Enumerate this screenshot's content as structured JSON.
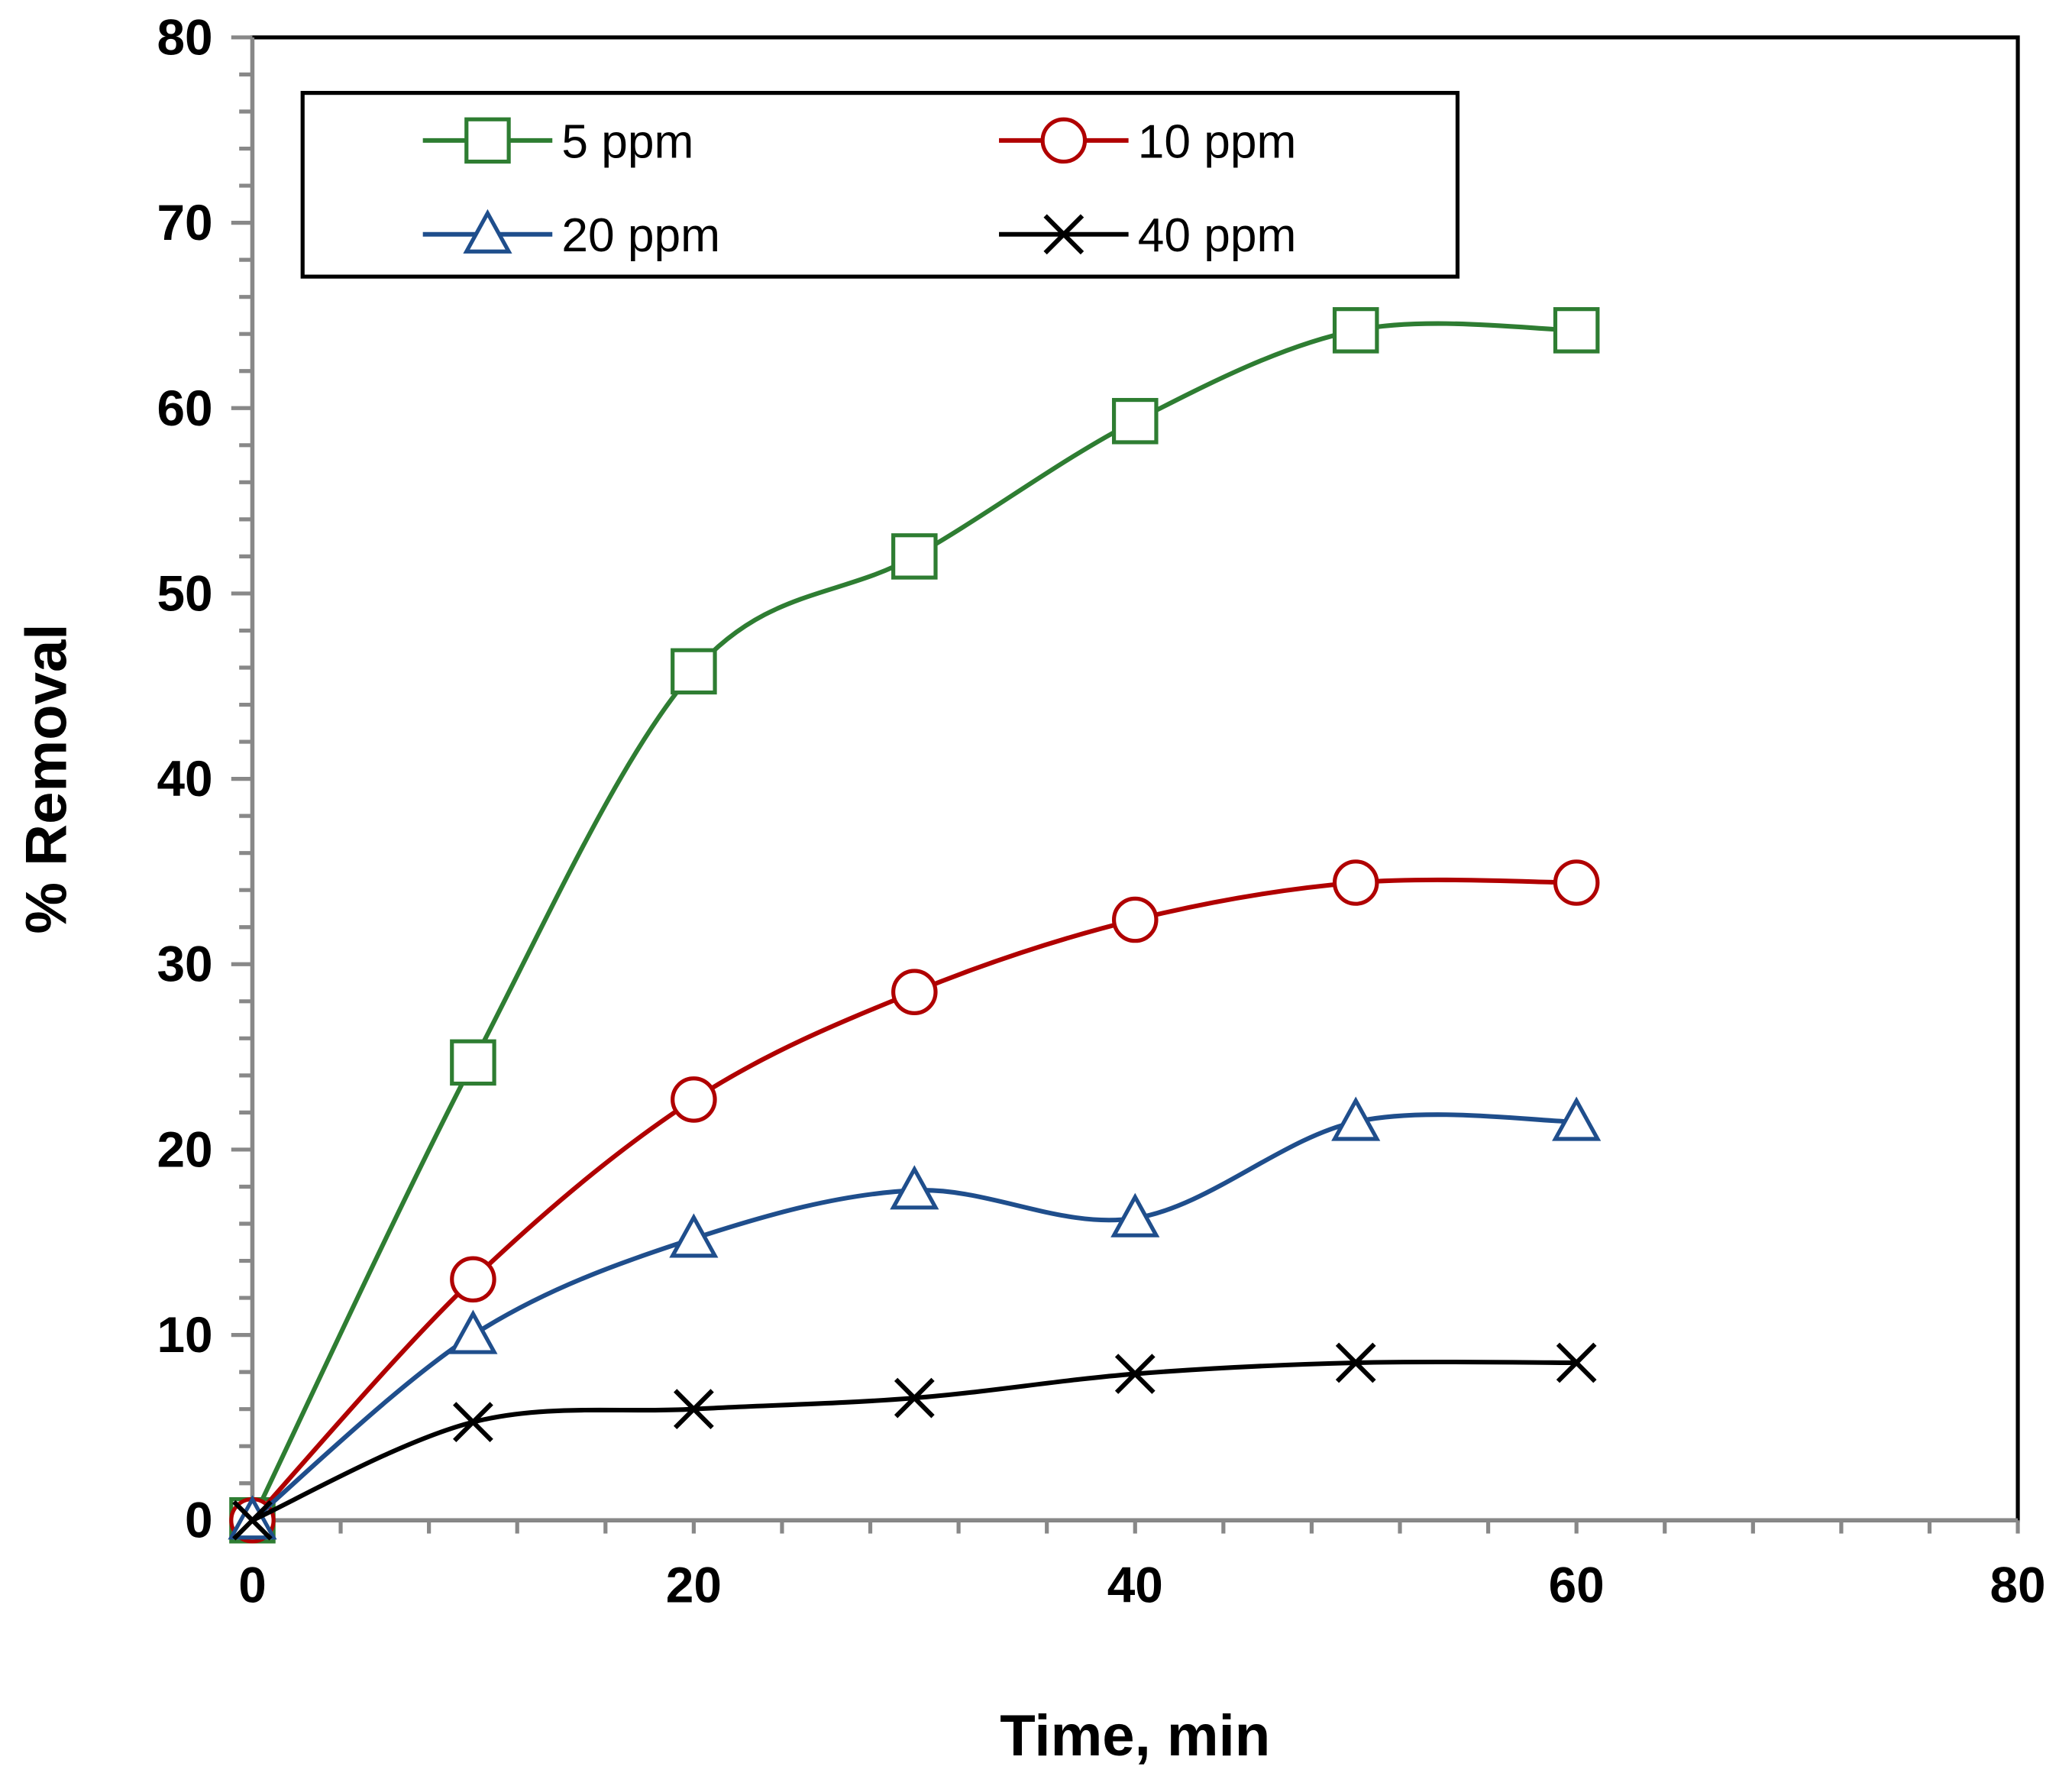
{
  "chart_data": {
    "type": "line",
    "title": "",
    "xlabel": "Time, min",
    "ylabel": "% Removal",
    "xlim": [
      0,
      80
    ],
    "ylim": [
      0,
      80
    ],
    "xticks": [
      0,
      20,
      40,
      60,
      80
    ],
    "yticks": [
      0,
      10,
      20,
      30,
      40,
      50,
      60,
      70,
      80
    ],
    "grid": false,
    "legend_position": "top",
    "x": [
      0,
      10,
      20,
      30,
      40,
      50,
      60
    ],
    "series": [
      {
        "name": "5 ppm",
        "color": "#2e7d32",
        "marker": "square",
        "values": [
          0,
          24.7,
          45.8,
          52.0,
          59.3,
          64.2,
          64.2
        ]
      },
      {
        "name": "10 ppm",
        "color": "#b00000",
        "marker": "circle",
        "values": [
          0,
          13.0,
          22.7,
          28.5,
          32.4,
          34.4,
          34.4
        ]
      },
      {
        "name": "20 ppm",
        "color": "#1f4e8c",
        "marker": "triangle",
        "values": [
          0,
          10.0,
          15.2,
          17.8,
          16.3,
          21.5,
          21.5
        ]
      },
      {
        "name": "40 ppm",
        "color": "#000000",
        "marker": "x",
        "values": [
          0,
          5.3,
          6.0,
          6.6,
          7.9,
          8.5,
          8.5
        ]
      }
    ]
  }
}
